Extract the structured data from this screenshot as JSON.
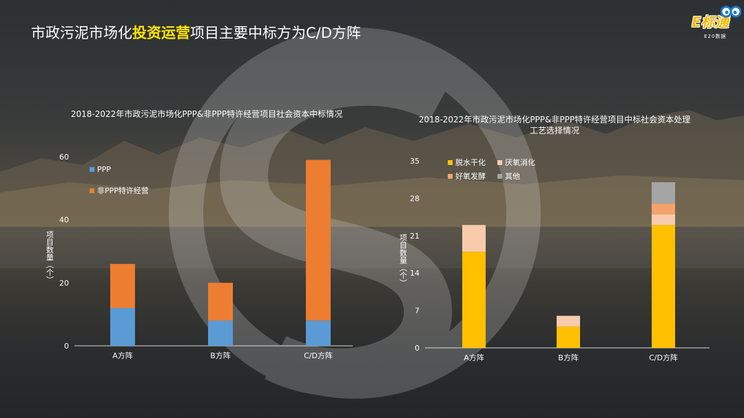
{
  "slide": {
    "title_part1": "市政污泥市场化",
    "title_highlight": "投资运营",
    "title_part2": "项目主要中标方为C/D方阵"
  },
  "logo": {
    "text": "E标通",
    "subtext": "E20数据"
  },
  "colors": {
    "ppp": "#5b9bd5",
    "non_ppp": "#ed7d31",
    "dewater": "#ffc000",
    "anaerobic": "#f8cbad",
    "aerobic": "#f4a46a",
    "other": "#a5a5a5",
    "title_highlight": "#ffe400"
  },
  "chart_data": [
    {
      "type": "bar",
      "stacked": true,
      "title": "2018-2022年市政污泥市场化PPP&非PPP特许经营项目社会资本中标情况",
      "ylabel": "项目数量（个）",
      "ylim": [
        0,
        60
      ],
      "yticks": [
        0,
        20,
        40,
        60
      ],
      "grid": false,
      "legend": "top-left",
      "categories": [
        "A方阵",
        "B方阵",
        "C/D方阵"
      ],
      "series": [
        {
          "name": "PPP",
          "values": [
            12,
            8,
            8
          ]
        },
        {
          "name": "非PPP特许经营",
          "values": [
            14,
            12,
            51
          ]
        }
      ]
    },
    {
      "type": "bar",
      "stacked": true,
      "title": "2018-2022年市政污泥市场化PPP&非PPP特许经营项目中标社会资本处理工艺选择情况",
      "ylabel": "项目数量（个）",
      "ylim": [
        0,
        35
      ],
      "yticks": [
        0,
        7,
        14,
        21,
        28,
        35
      ],
      "grid": false,
      "legend": "top-left",
      "categories": [
        "A方阵",
        "B方阵",
        "C/D方阵"
      ],
      "series": [
        {
          "name": "脱水干化",
          "values": [
            18,
            4,
            23
          ]
        },
        {
          "name": "厌氧消化",
          "values": [
            5,
            2,
            2
          ]
        },
        {
          "name": "好氧发酵",
          "values": [
            0,
            0,
            2
          ]
        },
        {
          "name": "其他",
          "values": [
            0,
            0,
            4
          ]
        }
      ]
    }
  ]
}
